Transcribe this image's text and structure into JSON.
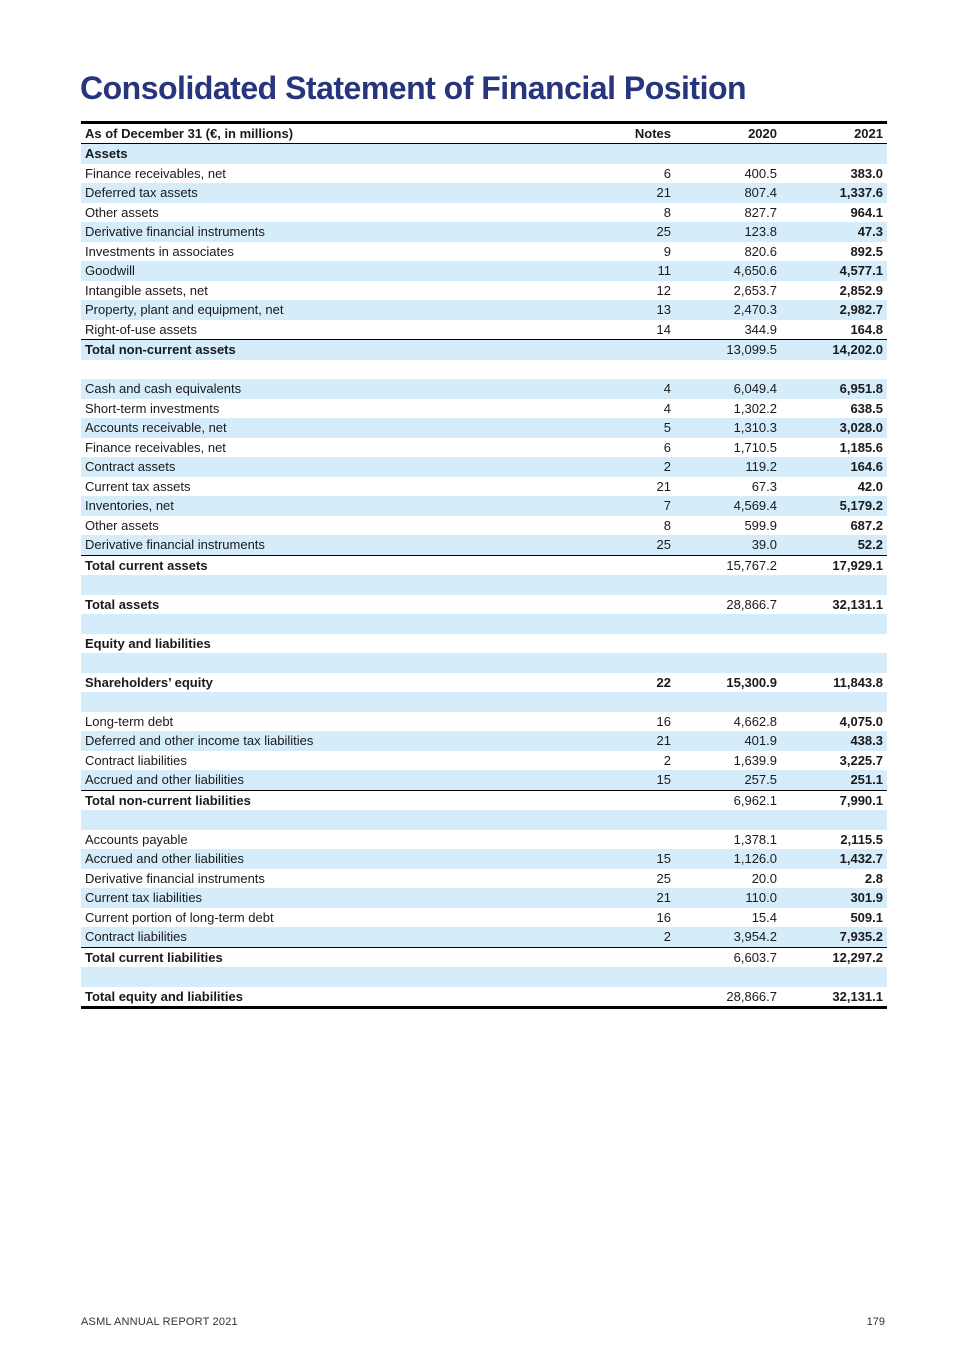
{
  "title": "Consolidated Statement of Financial Position",
  "table": {
    "headers": {
      "label": "As of December 31 (€, in millions)",
      "notes": "Notes",
      "y1": "2020",
      "y2": "2021"
    },
    "rows": [
      {
        "label": "Assets",
        "notes": "",
        "y1": "",
        "y2": ""
      },
      {
        "label": "Finance receivables, net",
        "notes": "6",
        "y1": "400.5",
        "y2": "383.0"
      },
      {
        "label": "Deferred tax assets",
        "notes": "21",
        "y1": "807.4",
        "y2": "1,337.6"
      },
      {
        "label": "Other assets",
        "notes": "8",
        "y1": "827.7",
        "y2": "964.1"
      },
      {
        "label": "Derivative financial instruments",
        "notes": "25",
        "y1": "123.8",
        "y2": "47.3"
      },
      {
        "label": "Investments in associates",
        "notes": "9",
        "y1": "820.6",
        "y2": "892.5"
      },
      {
        "label": "Goodwill",
        "notes": "11",
        "y1": "4,650.6",
        "y2": "4,577.1"
      },
      {
        "label": "Intangible assets, net",
        "notes": "12",
        "y1": "2,653.7",
        "y2": "2,852.9"
      },
      {
        "label": "Property, plant and equipment, net",
        "notes": "13",
        "y1": "2,470.3",
        "y2": "2,982.7"
      },
      {
        "label": "Right-of-use assets",
        "notes": "14",
        "y1": "344.9",
        "y2": "164.8"
      },
      {
        "label": "Total non-current assets",
        "notes": "",
        "y1": "13,099.5",
        "y2": "14,202.0"
      },
      {
        "label": "",
        "notes": "",
        "y1": "",
        "y2": ""
      },
      {
        "label": "Cash and cash equivalents",
        "notes": "4",
        "y1": "6,049.4",
        "y2": "6,951.8"
      },
      {
        "label": "Short-term investments",
        "notes": "4",
        "y1": "1,302.2",
        "y2": "638.5"
      },
      {
        "label": "Accounts receivable, net",
        "notes": "5",
        "y1": "1,310.3",
        "y2": "3,028.0"
      },
      {
        "label": "Finance receivables, net",
        "notes": "6",
        "y1": "1,710.5",
        "y2": "1,185.6"
      },
      {
        "label": "Contract assets",
        "notes": "2",
        "y1": "119.2",
        "y2": "164.6"
      },
      {
        "label": "Current tax assets",
        "notes": "21",
        "y1": "67.3",
        "y2": "42.0"
      },
      {
        "label": "Inventories, net",
        "notes": "7",
        "y1": "4,569.4",
        "y2": "5,179.2"
      },
      {
        "label": "Other assets",
        "notes": "8",
        "y1": "599.9",
        "y2": "687.2"
      },
      {
        "label": "Derivative financial instruments",
        "notes": "25",
        "y1": "39.0",
        "y2": "52.2"
      },
      {
        "label": "Total current assets",
        "notes": "",
        "y1": "15,767.2",
        "y2": "17,929.1"
      },
      {
        "label": "",
        "notes": "",
        "y1": "",
        "y2": ""
      },
      {
        "label": "Total assets",
        "notes": "",
        "y1": "28,866.7",
        "y2": "32,131.1"
      },
      {
        "label": "",
        "notes": "",
        "y1": "",
        "y2": ""
      },
      {
        "label": "Equity and liabilities",
        "notes": "",
        "y1": "",
        "y2": ""
      },
      {
        "label": "",
        "notes": "",
        "y1": "",
        "y2": ""
      },
      {
        "label": "Shareholders’ equity",
        "notes": "22",
        "y1": "15,300.9",
        "y2": "11,843.8"
      },
      {
        "label": "",
        "notes": "",
        "y1": "",
        "y2": ""
      },
      {
        "label": "Long-term debt",
        "notes": "16",
        "y1": "4,662.8",
        "y2": "4,075.0"
      },
      {
        "label": "Deferred and other income tax liabilities",
        "notes": "21",
        "y1": "401.9",
        "y2": "438.3"
      },
      {
        "label": "Contract liabilities",
        "notes": "2",
        "y1": "1,639.9",
        "y2": "3,225.7"
      },
      {
        "label": "Accrued and other liabilities",
        "notes": "15",
        "y1": "257.5",
        "y2": "251.1"
      },
      {
        "label": "Total non-current liabilities",
        "notes": "",
        "y1": "6,962.1",
        "y2": "7,990.1"
      },
      {
        "label": "",
        "notes": "",
        "y1": "",
        "y2": ""
      },
      {
        "label": "Accounts payable",
        "notes": "",
        "y1": "1,378.1",
        "y2": "2,115.5"
      },
      {
        "label": "Accrued and other liabilities",
        "notes": "15",
        "y1": "1,126.0",
        "y2": "1,432.7"
      },
      {
        "label": "Derivative financial instruments",
        "notes": "25",
        "y1": "20.0",
        "y2": "2.8"
      },
      {
        "label": "Current tax liabilities",
        "notes": "21",
        "y1": "110.0",
        "y2": "301.9"
      },
      {
        "label": "Current portion of long-term debt",
        "notes": "16",
        "y1": "15.4",
        "y2": "509.1"
      },
      {
        "label": "Contract liabilities",
        "notes": "2",
        "y1": "3,954.2",
        "y2": "7,935.2"
      },
      {
        "label": "Total current liabilities",
        "notes": "",
        "y1": "6,603.7",
        "y2": "12,297.2"
      },
      {
        "label": "",
        "notes": "",
        "y1": "",
        "y2": ""
      },
      {
        "label": "Total equity and liabilities",
        "notes": "",
        "y1": "28,866.7",
        "y2": "32,131.1"
      }
    ]
  },
  "footer": {
    "left": "ASML ANNUAL REPORT 2021",
    "right": "179"
  }
}
